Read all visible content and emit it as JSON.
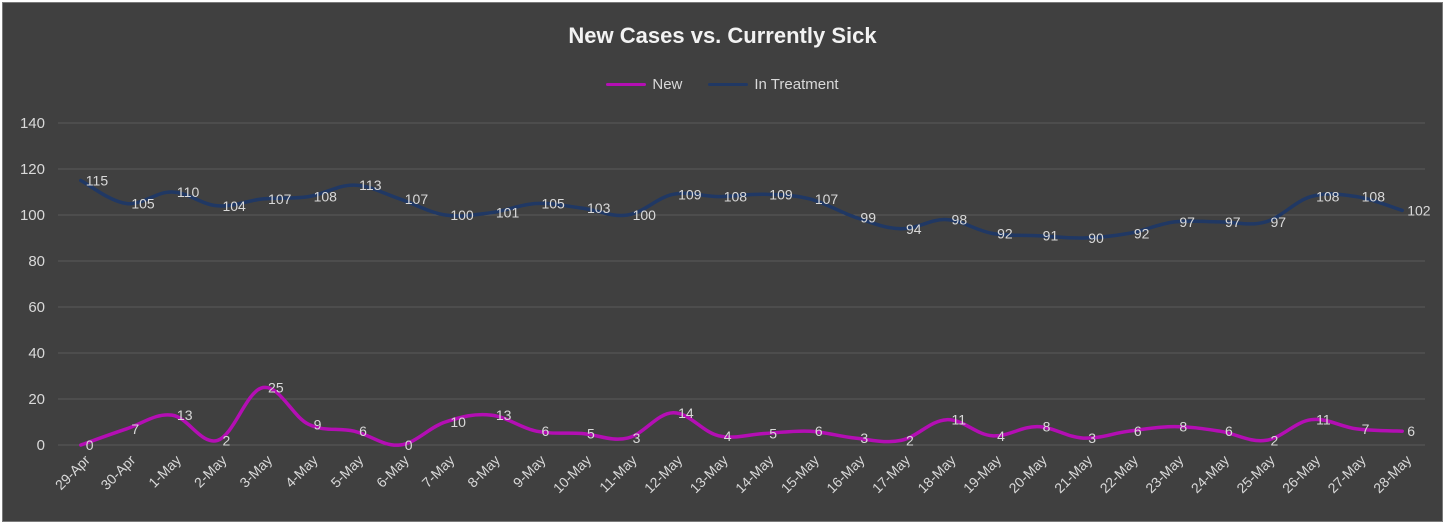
{
  "chart_data": {
    "type": "line",
    "title": "New Cases vs. Currently Sick",
    "xlabel": "",
    "ylabel": "",
    "ylim": [
      0,
      140
    ],
    "yticks": [
      0,
      20,
      40,
      60,
      80,
      100,
      120,
      140
    ],
    "grid": true,
    "legend_position": "top",
    "categories": [
      "29-Apr",
      "30-Apr",
      "1-May",
      "2-May",
      "3-May",
      "4-May",
      "5-May",
      "6-May",
      "7-May",
      "8-May",
      "9-May",
      "10-May",
      "11-May",
      "12-May",
      "13-May",
      "14-May",
      "15-May",
      "16-May",
      "17-May",
      "18-May",
      "19-May",
      "20-May",
      "21-May",
      "22-May",
      "23-May",
      "24-May",
      "25-May",
      "26-May",
      "27-May",
      "28-May"
    ],
    "series": [
      {
        "name": "New",
        "color": "#b40eb4",
        "values": [
          0,
          7,
          13,
          2,
          25,
          9,
          6,
          0,
          10,
          13,
          6,
          5,
          3,
          14,
          4,
          5,
          6,
          3,
          2,
          11,
          4,
          8,
          3,
          6,
          8,
          6,
          2,
          11,
          7,
          6
        ]
      },
      {
        "name": "In Treatment",
        "color": "#203864",
        "values": [
          115,
          105,
          110,
          104,
          107,
          108,
          113,
          107,
          100,
          101,
          105,
          103,
          100,
          109,
          108,
          109,
          107,
          99,
          94,
          98,
          92,
          91,
          90,
          92,
          97,
          97,
          97,
          108,
          108,
          102
        ]
      }
    ]
  },
  "colors": {
    "background": "#404040",
    "gridline": "#5a5a5a",
    "text": "#d9d9d9"
  }
}
